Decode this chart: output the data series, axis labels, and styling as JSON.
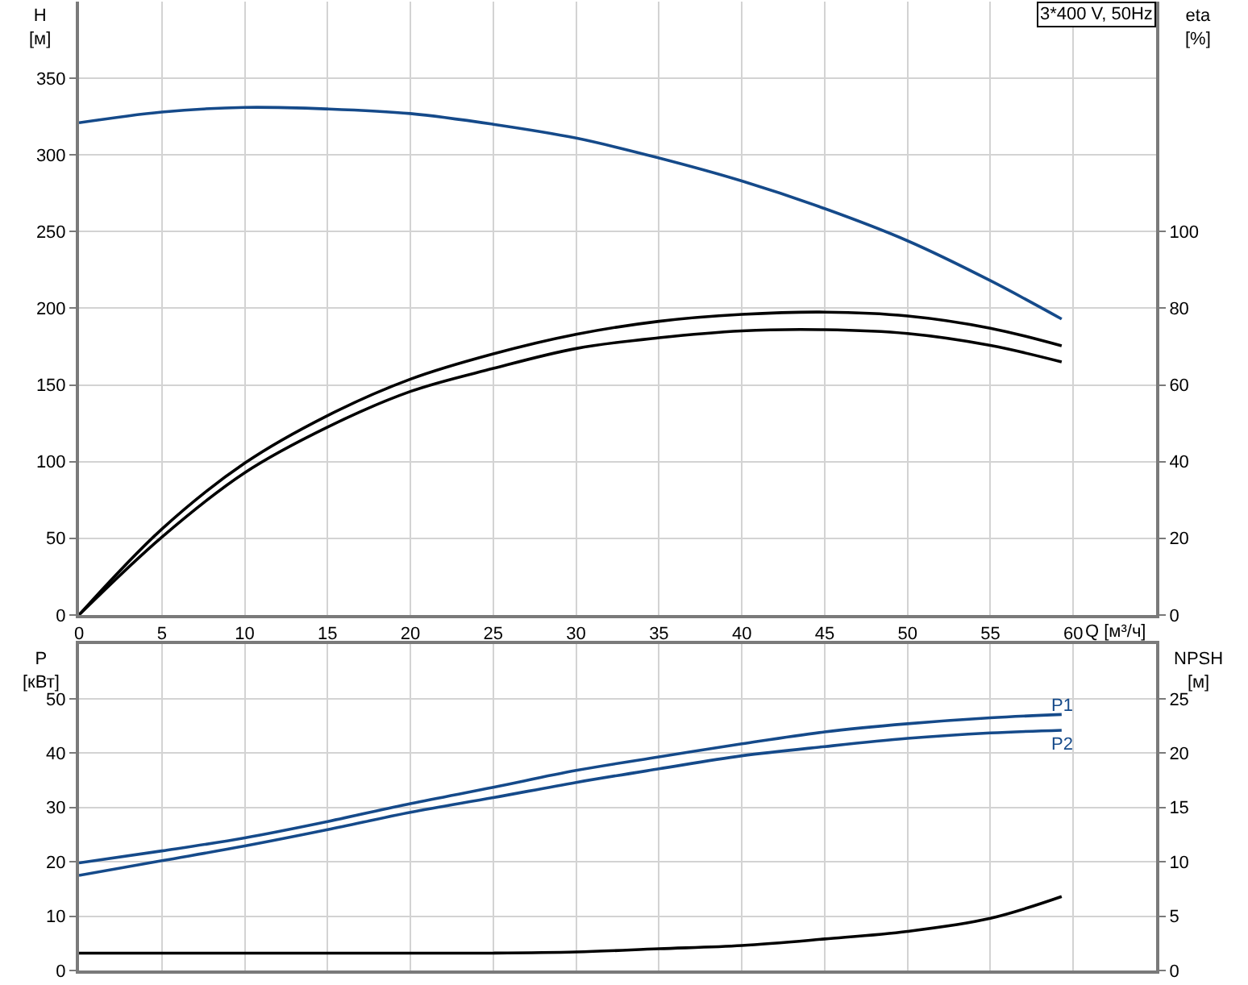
{
  "chart_data": [
    {
      "type": "line",
      "xlabel": "Q [м³/ч]",
      "ylabel": "H [м]",
      "y2label": "eta [%]",
      "annotations": [
        "3*400 V, 50Hz"
      ],
      "x": [
        0,
        5,
        10,
        15,
        20,
        25,
        30,
        35,
        40,
        45,
        50,
        55,
        59.3
      ],
      "series": [
        {
          "color": "#154a8a",
          "values": [
            321,
            328,
            331,
            330,
            327,
            320,
            311,
            298,
            283,
            265,
            244,
            218,
            193
          ]
        },
        {
          "color": "#000000",
          "axis": "y2",
          "values": [
            0,
            22.4,
            39.6,
            52.0,
            61.5,
            68.1,
            73.2,
            76.6,
            78.4,
            79.0,
            78.0,
            74.8,
            70.2
          ]
        },
        {
          "color": "#000000",
          "axis": "y2",
          "values": [
            0,
            20.3,
            37.1,
            49.0,
            58.3,
            64.3,
            69.5,
            72.3,
            74.1,
            74.4,
            73.4,
            70.3,
            66.0
          ]
        }
      ],
      "xlim": [
        0,
        65
      ],
      "xticks": [
        0,
        5,
        10,
        15,
        20,
        25,
        30,
        35,
        40,
        45,
        50,
        55,
        60
      ],
      "ylim": [
        0,
        400
      ],
      "yticks": [
        0,
        50,
        100,
        150,
        200,
        250,
        300,
        350
      ],
      "y2lim": [
        0,
        160
      ],
      "y2ticks": [
        0,
        20,
        40,
        60,
        80,
        100
      ],
      "grid": true
    },
    {
      "type": "line",
      "ylabel": "P [кВт]",
      "y2label": "NPSH [м]",
      "x": [
        0,
        5,
        10,
        15,
        20,
        25,
        30,
        35,
        40,
        45,
        50,
        55,
        59.3
      ],
      "series": [
        {
          "name": "P1",
          "color": "#154a8a",
          "values": [
            19.8,
            22.0,
            24.4,
            27.4,
            30.7,
            33.7,
            36.8,
            39.3,
            41.7,
            43.9,
            45.4,
            46.5,
            47.1
          ]
        },
        {
          "name": "P2",
          "color": "#154a8a",
          "values": [
            17.5,
            20.2,
            22.9,
            25.9,
            29.1,
            31.8,
            34.6,
            37.1,
            39.5,
            41.2,
            42.7,
            43.7,
            44.2
          ]
        },
        {
          "color": "#000000",
          "axis": "y2",
          "x": [
            0,
            22.3,
            25,
            30,
            35,
            40,
            45,
            50,
            55,
            59.3
          ],
          "values": [
            1.6,
            1.6,
            1.6,
            1.7,
            2.0,
            2.3,
            2.9,
            3.6,
            4.8,
            6.8
          ]
        }
      ],
      "xlim": [
        0,
        65
      ],
      "xticks": [
        0,
        5,
        10,
        15,
        20,
        25,
        30,
        35,
        40,
        45,
        50,
        55,
        60
      ],
      "ylim": [
        0,
        60
      ],
      "yticks": [
        0,
        10,
        20,
        30,
        40,
        50
      ],
      "y2lim": [
        0,
        30
      ],
      "y2ticks": [
        0,
        5,
        10,
        15,
        20,
        25
      ],
      "grid": true,
      "tick_labels": "y"
    }
  ]
}
